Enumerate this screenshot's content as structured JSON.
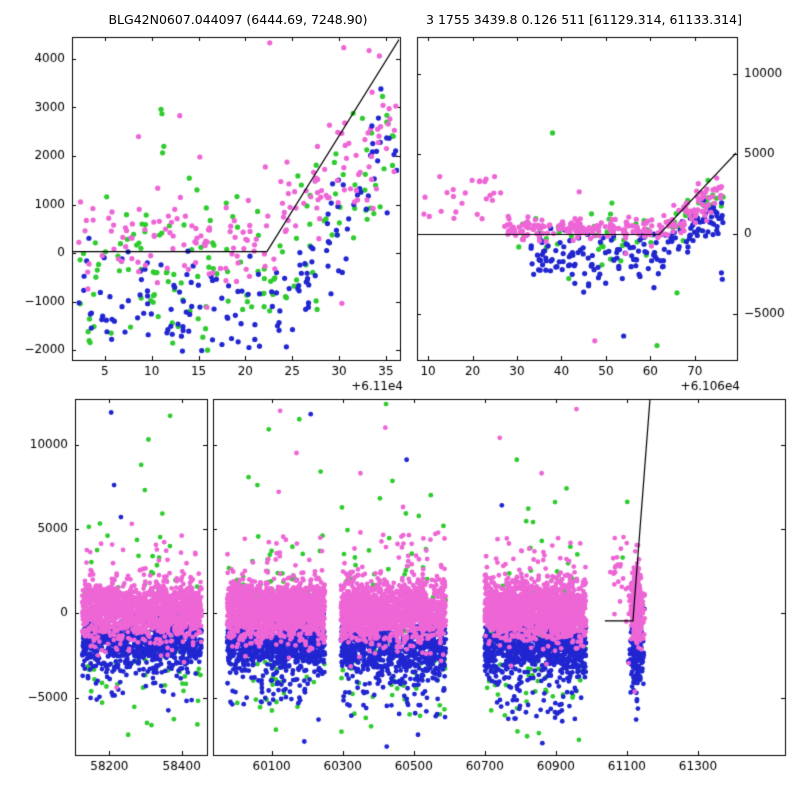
{
  "figure": {
    "title_left": "BLG42N0607.044097 (6444.69, 7248.90)",
    "title_right": "3 1755 3439.8 0.126 511 [61129.314, 61133.314]",
    "background": "#ffffff"
  },
  "colors": {
    "pink": "#ee66d6",
    "green": "#2fcc2f",
    "blue": "#2126d1",
    "line": "#000000",
    "frame": "#000000",
    "text": "#000000"
  },
  "chart_data": [
    {
      "id": "top_left",
      "type": "scatter",
      "xlim": [
        1.5,
        36.5
      ],
      "ylim": [
        -2200,
        4450
      ],
      "xticks": [
        5,
        10,
        15,
        20,
        25,
        30,
        35
      ],
      "yticks": [
        -2000,
        -1000,
        0,
        1000,
        2000,
        3000,
        4000
      ],
      "y_label_side": "left",
      "show_x_labels": true,
      "x_offset_label": "+6.11e4",
      "model_line": [
        [
          1.5,
          30
        ],
        [
          22.3,
          30
        ],
        [
          36.5,
          4430
        ]
      ],
      "clusters": [
        {
          "color": "green",
          "n": 150,
          "x": {
            "type": "uniform",
            "min": 2,
            "max": 36.3
          },
          "y": {
            "type": "gauss",
            "mean": -350,
            "sigma": 780
          },
          "ramp": {
            "x0": 22,
            "slope": 160
          }
        },
        {
          "color": "blue",
          "n": 155,
          "x": {
            "type": "uniform",
            "min": 2,
            "max": 36.3
          },
          "y": {
            "type": "gauss",
            "mean": -1150,
            "sigma": 560
          },
          "ramp": {
            "x0": 24,
            "slope": 290
          }
        },
        {
          "color": "pink",
          "n": 175,
          "x": {
            "type": "uniform",
            "min": 2,
            "max": 36.3
          },
          "y": {
            "type": "gauss",
            "mean": 280,
            "sigma": 480
          },
          "ramp": {
            "x0": 22,
            "slope": 170
          },
          "tail": {
            "frac": 0.05,
            "min": -1600,
            "max": 2400
          }
        }
      ],
      "points": [
        [
          22.6,
          4330,
          "pink"
        ],
        [
          30.5,
          4230,
          "pink"
        ],
        [
          33.2,
          4170,
          "pink"
        ],
        [
          34.3,
          4060,
          "pink"
        ],
        [
          8.6,
          2400,
          "pink"
        ],
        [
          13,
          2830,
          "pink"
        ],
        [
          11,
          2960,
          "green"
        ],
        [
          11.1,
          2870,
          "green"
        ],
        [
          11.3,
          2200,
          "green"
        ],
        [
          25.6,
          1590,
          "green"
        ],
        [
          31.5,
          2880,
          "green"
        ],
        [
          5.2,
          1160,
          "green"
        ],
        [
          34.2,
          2780,
          "blue"
        ],
        [
          33.5,
          2620,
          "blue"
        ],
        [
          11,
          -240,
          "blue"
        ]
      ]
    },
    {
      "id": "top_right",
      "type": "scatter",
      "xlim": [
        7.5,
        79.5
      ],
      "ylim": [
        -7900,
        12300
      ],
      "xticks": [
        10,
        20,
        30,
        40,
        50,
        60,
        70
      ],
      "yticks": [
        -5000,
        0,
        5000,
        10000
      ],
      "y_label_side": "right",
      "show_x_labels": true,
      "x_offset_label": "+6.106e4",
      "model_line": [
        [
          7.5,
          -50
        ],
        [
          62,
          -50
        ],
        [
          79.5,
          5100
        ]
      ],
      "clusters": [
        {
          "color": "green",
          "n": 40,
          "x": {
            "type": "uniform",
            "min": 30,
            "max": 63
          },
          "y": {
            "type": "gauss",
            "mean": -300,
            "sigma": 1100
          }
        },
        {
          "color": "green",
          "n": 28,
          "x": {
            "type": "uniform",
            "min": 63,
            "max": 76.5
          },
          "y": {
            "type": "gauss",
            "mean": 250,
            "sigma": 700
          },
          "ramp": {
            "x0": 63,
            "slope": 150
          }
        },
        {
          "color": "blue",
          "n": 115,
          "x": {
            "type": "uniform",
            "min": 33,
            "max": 63
          },
          "y": {
            "type": "gauss",
            "mean": -1500,
            "sigma": 800
          }
        },
        {
          "color": "blue",
          "n": 62,
          "x": {
            "type": "uniform",
            "min": 63,
            "max": 76.5
          },
          "y": {
            "type": "gauss",
            "mean": -450,
            "sigma": 620
          },
          "ramp": {
            "x0": 63,
            "slope": 120
          }
        },
        {
          "color": "pink",
          "n": 25,
          "x": {
            "type": "uniform",
            "min": 8.5,
            "max": 27
          },
          "y": {
            "type": "uniform",
            "min": 900,
            "max": 3600
          }
        },
        {
          "color": "pink",
          "n": 165,
          "x": {
            "type": "uniform",
            "min": 27,
            "max": 63
          },
          "y": {
            "type": "gauss",
            "mean": 260,
            "sigma": 380
          }
        },
        {
          "color": "pink",
          "n": 75,
          "x": {
            "type": "uniform",
            "min": 63,
            "max": 76.5
          },
          "y": {
            "type": "gauss",
            "mean": 350,
            "sigma": 480
          },
          "ramp": {
            "x0": 63,
            "slope": 165
          }
        }
      ],
      "points": [
        [
          38,
          6300,
          "green"
        ],
        [
          61.5,
          -7000,
          "green"
        ],
        [
          66,
          -3700,
          "green"
        ],
        [
          47.5,
          -6700,
          "pink"
        ],
        [
          44,
          2620,
          "pink"
        ],
        [
          54,
          -6400,
          "blue"
        ],
        [
          76,
          -2450,
          "blue"
        ],
        [
          76.2,
          -2850,
          "blue"
        ],
        [
          45,
          -3650,
          "blue"
        ]
      ]
    },
    {
      "id": "bottom_left",
      "type": "scatter",
      "xlim": [
        58105,
        58470
      ],
      "ylim": [
        -8400,
        12700
      ],
      "xticks": [
        58200,
        58400
      ],
      "yticks": [
        -5000,
        0,
        5000,
        10000
      ],
      "y_label_side": "left",
      "show_x_labels": true,
      "x_offset_label": "",
      "clusters": [
        {
          "color": "green",
          "n": 110,
          "x": {
            "type": "uniform",
            "min": 58125,
            "max": 58455
          },
          "y": {
            "type": "gauss",
            "mean": -1200,
            "sigma": 2600
          }
        },
        {
          "color": "blue",
          "n": 750,
          "x": {
            "type": "uniform",
            "min": 58125,
            "max": 58455
          },
          "y": {
            "type": "gauss",
            "mean": -1800,
            "sigma": 750
          },
          "tail": {
            "frac": 0.12,
            "min": -5200,
            "max": -800
          }
        },
        {
          "color": "pink",
          "n": 1400,
          "x": {
            "type": "uniform",
            "min": 58125,
            "max": 58455
          },
          "y": {
            "type": "gauss",
            "mean": 150,
            "sigma": 850
          },
          "tail": {
            "frac": 0.02,
            "min": 1800,
            "max": 4300
          }
        }
      ],
      "points": [
        [
          58205,
          11900,
          "blue"
        ],
        [
          58213,
          7600,
          "blue"
        ],
        [
          58232,
          5700,
          "blue"
        ],
        [
          58363,
          -5750,
          "blue"
        ],
        [
          58308,
          10300,
          "green"
        ],
        [
          58288,
          8800,
          "green"
        ],
        [
          58298,
          7300,
          "green"
        ],
        [
          58195,
          4600,
          "green"
        ],
        [
          58368,
          11700,
          "green"
        ],
        [
          58252,
          -7200,
          "green"
        ],
        [
          58304,
          -6500,
          "green"
        ],
        [
          58180,
          -5300,
          "green"
        ],
        [
          58405,
          -4600,
          "green"
        ],
        [
          58262,
          5300,
          "pink"
        ],
        [
          58400,
          4600,
          "pink"
        ],
        [
          58220,
          -4400,
          "pink"
        ]
      ]
    },
    {
      "id": "bottom_right",
      "type": "scatter",
      "xlim": [
        59935,
        61545
      ],
      "ylim": [
        -8400,
        12700
      ],
      "xticks": [
        60100,
        60300,
        60500,
        60700,
        60900,
        61100,
        61300
      ],
      "yticks": [
        -5000,
        0,
        5000,
        10000
      ],
      "y_label_side": "none",
      "show_x_labels": true,
      "x_offset_label": "",
      "model_line": [
        [
          61038,
          -450
        ],
        [
          61117,
          -450
        ],
        [
          61165,
          12700
        ]
      ],
      "clusters": [
        {
          "color": "green",
          "n": 120,
          "x": {
            "type": "uniform",
            "min": 59975,
            "max": 60250
          },
          "y": {
            "type": "gauss",
            "mean": -800,
            "sigma": 2800
          }
        },
        {
          "color": "green",
          "n": 115,
          "x": {
            "type": "uniform",
            "min": 60295,
            "max": 60590
          },
          "y": {
            "type": "gauss",
            "mean": -1000,
            "sigma": 3000
          }
        },
        {
          "color": "green",
          "n": 120,
          "x": {
            "type": "uniform",
            "min": 60700,
            "max": 60985
          },
          "y": {
            "type": "gauss",
            "mean": -900,
            "sigma": 2900
          }
        },
        {
          "color": "green",
          "n": 10,
          "x": {
            "type": "gauss",
            "mean": 61127,
            "sigma": 9,
            "min": 61098,
            "max": 61150
          },
          "y": {
            "type": "gauss",
            "mean": 0,
            "sigma": 2500
          }
        },
        {
          "color": "blue",
          "n": 820,
          "x": {
            "type": "uniform",
            "min": 59975,
            "max": 60250
          },
          "y": {
            "type": "gauss",
            "mean": -1850,
            "sigma": 780
          },
          "tail": {
            "frac": 0.12,
            "min": -5400,
            "max": -800
          }
        },
        {
          "color": "blue",
          "n": 800,
          "x": {
            "type": "uniform",
            "min": 60295,
            "max": 60590
          },
          "y": {
            "type": "gauss",
            "mean": -2000,
            "sigma": 850
          },
          "tail": {
            "frac": 0.15,
            "min": -6200,
            "max": -900
          }
        },
        {
          "color": "blue",
          "n": 850,
          "x": {
            "type": "uniform",
            "min": 60700,
            "max": 60985
          },
          "y": {
            "type": "gauss",
            "mean": -2000,
            "sigma": 820
          },
          "tail": {
            "frac": 0.15,
            "min": -6300,
            "max": -900
          }
        },
        {
          "color": "blue",
          "n": 170,
          "x": {
            "type": "gauss",
            "mean": 61127,
            "sigma": 9,
            "min": 61098,
            "max": 61150
          },
          "y": {
            "type": "gauss",
            "mean": -2300,
            "sigma": 850
          },
          "tail": {
            "frac": 0.1,
            "min": -5200,
            "max": -1200
          }
        },
        {
          "color": "pink",
          "n": 1500,
          "x": {
            "type": "uniform",
            "min": 59975,
            "max": 60250
          },
          "y": {
            "type": "gauss",
            "mean": 200,
            "sigma": 850
          },
          "tail": {
            "frac": 0.02,
            "min": 1800,
            "max": 4600
          }
        },
        {
          "color": "pink",
          "n": 1350,
          "x": {
            "type": "uniform",
            "min": 60295,
            "max": 60590
          },
          "y": {
            "type": "gauss",
            "mean": 150,
            "sigma": 900
          },
          "tail": {
            "frac": 0.02,
            "min": 1800,
            "max": 4800
          }
        },
        {
          "color": "pink",
          "n": 1500,
          "x": {
            "type": "uniform",
            "min": 60700,
            "max": 60985
          },
          "y": {
            "type": "gauss",
            "mean": 200,
            "sigma": 880
          },
          "tail": {
            "frac": 0.025,
            "min": 1800,
            "max": 4500
          }
        },
        {
          "color": "pink",
          "n": 280,
          "x": {
            "type": "gauss",
            "mean": 61127,
            "sigma": 9,
            "min": 61098,
            "max": 61150
          },
          "y": {
            "type": "gauss",
            "mean": 300,
            "sigma": 1150
          },
          "tail": {
            "frac": 0.03,
            "min": 2200,
            "max": 4300
          }
        },
        {
          "color": "pink",
          "n": 22,
          "x": {
            "type": "uniform",
            "min": 61052,
            "max": 61100
          },
          "y": {
            "type": "uniform",
            "min": -700,
            "max": 4600
          }
        }
      ],
      "points": [
        [
          60124,
          12000,
          "pink"
        ],
        [
          60170,
          9500,
          "pink"
        ],
        [
          60120,
          7200,
          "pink"
        ],
        [
          60420,
          11000,
          "pink"
        ],
        [
          60350,
          8300,
          "pink"
        ],
        [
          60470,
          6300,
          "pink"
        ],
        [
          60958,
          12100,
          "pink"
        ],
        [
          60742,
          10400,
          "pink"
        ],
        [
          60860,
          8300,
          "pink"
        ],
        [
          61122,
          -4650,
          "pink"
        ],
        [
          60178,
          11500,
          "green"
        ],
        [
          60092,
          10900,
          "green"
        ],
        [
          60238,
          8400,
          "green"
        ],
        [
          60060,
          7600,
          "green"
        ],
        [
          60112,
          -6900,
          "green"
        ],
        [
          60380,
          -6700,
          "green"
        ],
        [
          60422,
          12400,
          "green"
        ],
        [
          60548,
          7000,
          "green"
        ],
        [
          60790,
          9100,
          "green"
        ],
        [
          60930,
          7400,
          "green"
        ],
        [
          60792,
          -7000,
          "green"
        ],
        [
          61101,
          6600,
          "green"
        ],
        [
          61088,
          3300,
          "green"
        ],
        [
          60965,
          -7500,
          "green"
        ],
        [
          60192,
          -7600,
          "blue"
        ],
        [
          60232,
          -6300,
          "blue"
        ],
        [
          60480,
          9100,
          "blue"
        ],
        [
          60424,
          -7900,
          "blue"
        ],
        [
          60512,
          -7200,
          "blue"
        ],
        [
          60562,
          -6100,
          "blue"
        ],
        [
          60748,
          6400,
          "blue"
        ],
        [
          60862,
          -7700,
          "blue"
        ],
        [
          60918,
          -6400,
          "blue"
        ],
        [
          61128,
          -5200,
          "blue"
        ],
        [
          61131,
          -5650,
          "blue"
        ],
        [
          61126,
          -6300,
          "blue"
        ],
        [
          60210,
          11800,
          "blue"
        ]
      ]
    }
  ]
}
